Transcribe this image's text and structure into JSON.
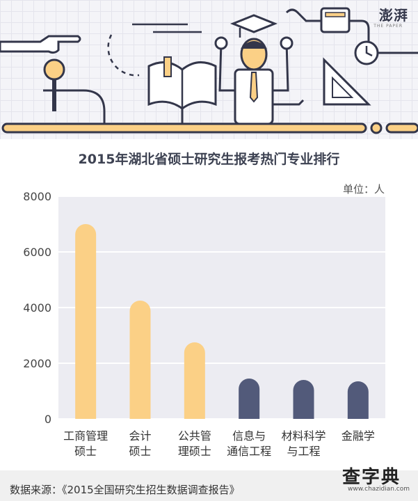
{
  "brand": {
    "logo_text": "澎湃",
    "logo_sub": "THE PAPER"
  },
  "chart_data": {
    "type": "bar",
    "title": "2015年湖北省硕士研究生报考热门专业排行",
    "unit": "单位：人",
    "categories": [
      [
        "工商管理",
        "硕士"
      ],
      [
        "会计",
        "硕士"
      ],
      [
        "公共管",
        "理硕士"
      ],
      [
        "信息与",
        "通信工程"
      ],
      [
        "材料科学",
        "与工程"
      ],
      [
        "金融学"
      ]
    ],
    "values": [
      7000,
      4250,
      2750,
      1450,
      1400,
      1350
    ],
    "yticks": [
      "0",
      "2000",
      "4000",
      "6000",
      "8000"
    ],
    "ylim": [
      0,
      8000
    ],
    "grid": true,
    "legend": "none",
    "colors": [
      "#fbd086",
      "#fbd086",
      "#fbd086",
      "#525a7a",
      "#525a7a",
      "#525a7a"
    ],
    "plot_background": "#ececf2"
  },
  "source": "数据来源：《2015全国研究生招生数据调查报告》",
  "watermark": {
    "text": "查字典",
    "url": "www.chazidian.com"
  }
}
